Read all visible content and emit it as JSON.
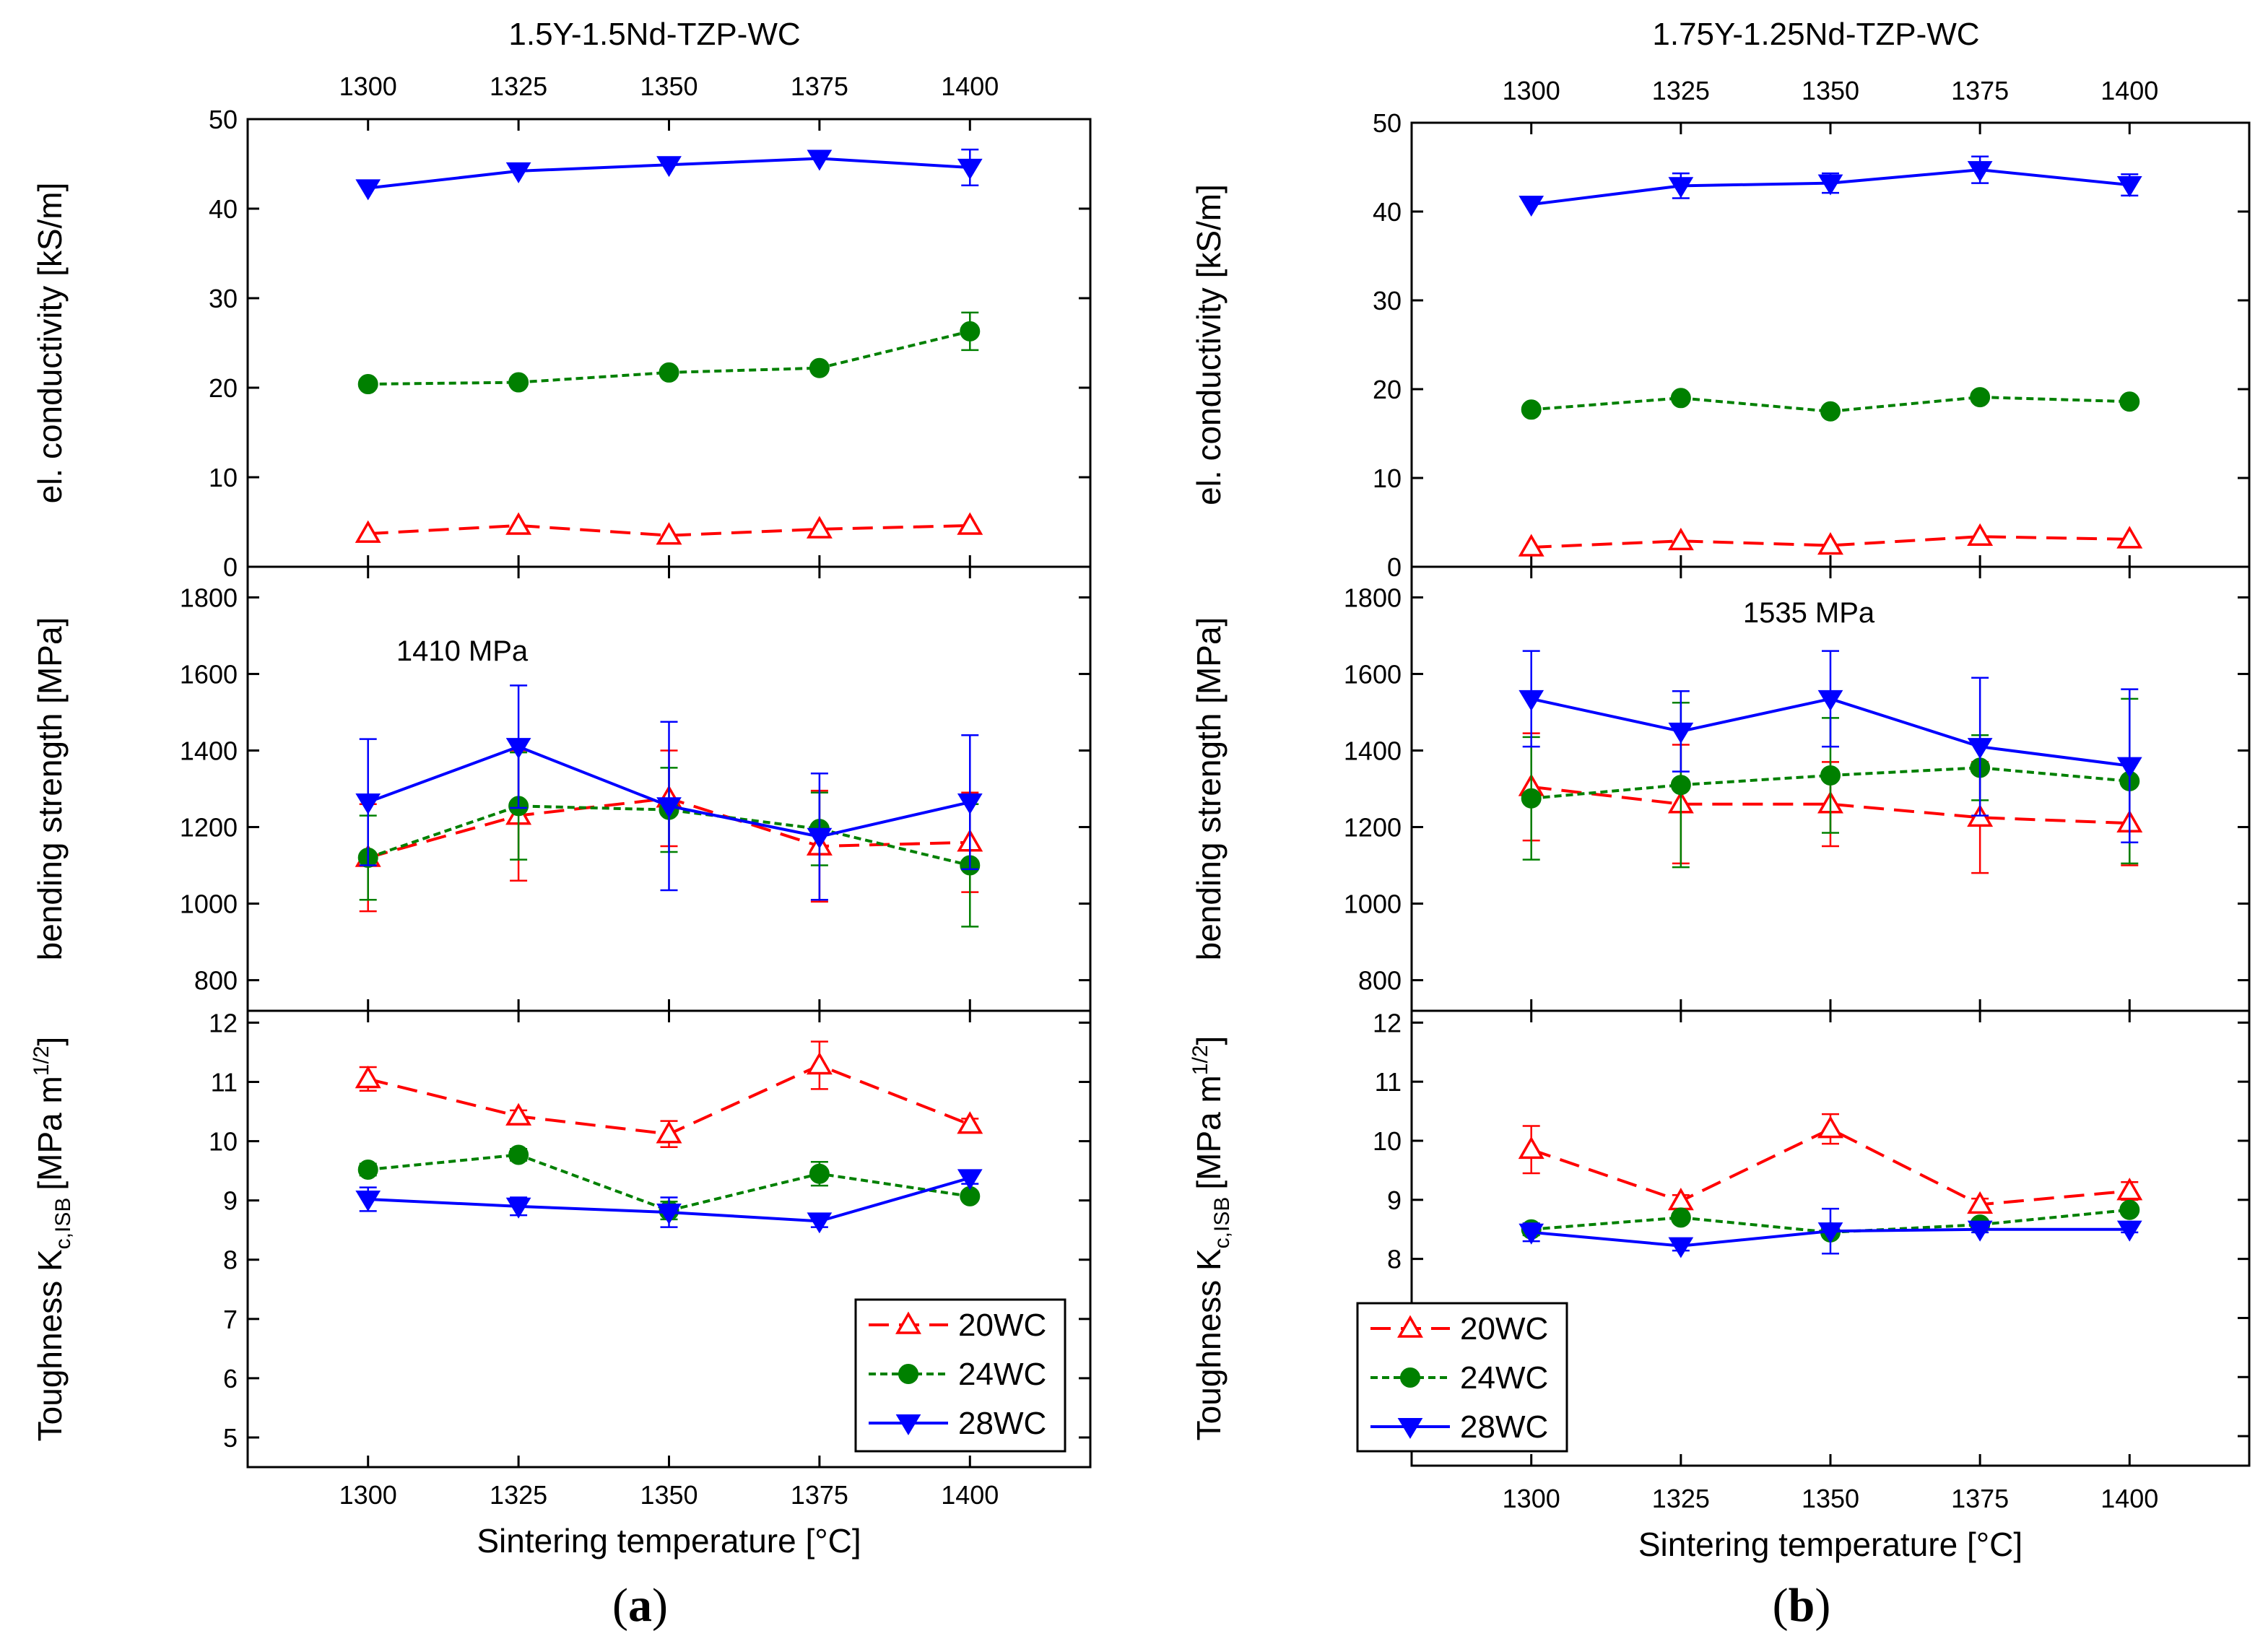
{
  "chart_data": [
    {
      "type": "line",
      "panel_label": "(a)",
      "panel_label_letter": "a",
      "top_title": "1.5Y-1.5Nd-TZP-WC",
      "xlabel": "Sintering temperature [°C]",
      "x": [
        1300,
        1325,
        1350,
        1375,
        1400
      ],
      "xlim": [
        1280,
        1420
      ],
      "x_ticks": [
        1300,
        1325,
        1350,
        1375,
        1400
      ],
      "legend": {
        "placement": "bottom-right",
        "in_subplot": "toughness"
      },
      "subplots": [
        {
          "id": "conductivity",
          "ylabel": "el. conductivity [kS/m]",
          "ylim": [
            0,
            50
          ],
          "y_ticks": [
            0,
            10,
            20,
            30,
            40,
            50
          ],
          "series": [
            {
              "name": "20WC",
              "values": [
                3.7,
                4.6,
                3.5,
                4.2,
                4.6
              ],
              "errors": [
                0,
                0,
                0,
                0,
                0
              ]
            },
            {
              "name": "24WC",
              "values": [
                20.4,
                20.6,
                21.7,
                22.2,
                26.3
              ],
              "errors": [
                0,
                0,
                0,
                0,
                2.1
              ]
            },
            {
              "name": "28WC",
              "values": [
                42.3,
                44.2,
                44.9,
                45.6,
                44.6
              ],
              "errors": [
                0,
                0,
                0,
                0,
                2.0
              ]
            }
          ]
        },
        {
          "id": "strength",
          "ylabel": "bending strength [MPa]",
          "ylim": [
            720,
            1880
          ],
          "y_ticks": [
            800,
            1000,
            1200,
            1400,
            1600,
            1800
          ],
          "annotation": "1410 MPa",
          "series": [
            {
              "name": "20WC",
              "values": [
                1120,
                1230,
                1275,
                1150,
                1160
              ],
              "errors": [
                140,
                170,
                125,
                145,
                130
              ]
            },
            {
              "name": "24WC",
              "values": [
                1120,
                1255,
                1245,
                1195,
                1100
              ],
              "errors": [
                110,
                140,
                110,
                95,
                160
              ]
            },
            {
              "name": "28WC",
              "values": [
                1265,
                1410,
                1255,
                1175,
                1265
              ],
              "errors": [
                165,
                160,
                220,
                165,
                175
              ]
            }
          ]
        },
        {
          "id": "toughness",
          "ylabel_main": "Toughness K",
          "ylabel_sub": "c,ISB",
          "ylabel_units": "[MPa m",
          "ylabel_sup": "1/2",
          "ylabel_close": "]",
          "ylim": [
            4.5,
            12.2
          ],
          "y_ticks": [
            5,
            6,
            7,
            8,
            9,
            10,
            11,
            12
          ],
          "series": [
            {
              "name": "20WC",
              "values": [
                11.05,
                10.42,
                10.12,
                11.28,
                10.28
              ],
              "errors": [
                0.2,
                0.1,
                0.22,
                0.4,
                0.1
              ]
            },
            {
              "name": "24WC",
              "values": [
                9.52,
                9.77,
                8.83,
                9.45,
                9.07
              ],
              "errors": [
                0.1,
                0.1,
                0.15,
                0.2,
                0.05
              ]
            },
            {
              "name": "28WC",
              "values": [
                9.02,
                8.9,
                8.8,
                8.65,
                9.38
              ],
              "errors": [
                0.2,
                0.15,
                0.25,
                0.1,
                0.1
              ]
            }
          ]
        }
      ]
    },
    {
      "type": "line",
      "panel_label": "(b)",
      "panel_label_letter": "b",
      "top_title": "1.75Y-1.25Nd-TZP-WC",
      "xlabel": "Sintering temperature [°C]",
      "x": [
        1300,
        1325,
        1350,
        1375,
        1400
      ],
      "xlim": [
        1280,
        1420
      ],
      "x_ticks": [
        1300,
        1325,
        1350,
        1375,
        1400
      ],
      "legend": {
        "placement": "bottom-left",
        "in_subplot": "toughness"
      },
      "subplots": [
        {
          "id": "conductivity",
          "ylabel": "el. conductivity [kS/m]",
          "ylim": [
            0,
            50
          ],
          "y_ticks": [
            0,
            10,
            20,
            30,
            40,
            50
          ],
          "series": [
            {
              "name": "20WC",
              "values": [
                2.2,
                2.9,
                2.4,
                3.4,
                3.1
              ],
              "errors": [
                0,
                0,
                0,
                0,
                0
              ]
            },
            {
              "name": "24WC",
              "values": [
                17.7,
                19.0,
                17.5,
                19.1,
                18.6
              ],
              "errors": [
                0,
                0,
                0,
                0,
                0
              ]
            },
            {
              "name": "28WC",
              "values": [
                40.8,
                42.9,
                43.2,
                44.7,
                43.0
              ],
              "errors": [
                0,
                1.4,
                1.1,
                1.5,
                1.2
              ]
            }
          ]
        },
        {
          "id": "strength",
          "ylabel": "bending strength [MPa]",
          "ylim": [
            720,
            1880
          ],
          "y_ticks": [
            800,
            1000,
            1200,
            1400,
            1600,
            1800
          ],
          "annotation": "1535 MPa",
          "series": [
            {
              "name": "20WC",
              "values": [
                1305,
                1260,
                1260,
                1225,
                1210
              ],
              "errors": [
                140,
                155,
                110,
                145,
                110
              ]
            },
            {
              "name": "24WC",
              "values": [
                1275,
                1310,
                1335,
                1355,
                1320
              ],
              "errors": [
                160,
                215,
                150,
                85,
                215
              ]
            },
            {
              "name": "28WC",
              "values": [
                1535,
                1450,
                1535,
                1410,
                1360
              ],
              "errors": [
                125,
                105,
                125,
                180,
                200
              ]
            }
          ]
        },
        {
          "id": "toughness",
          "ylabel_main": "Toughness K",
          "ylabel_sub": "c,ISB",
          "ylabel_units": "[MPa m",
          "ylabel_sup": "1/2",
          "ylabel_close": "]",
          "ylim": [
            4.5,
            12.2
          ],
          "y_ticks": [
            5,
            6,
            7,
            8,
            9,
            10,
            11,
            12
          ],
          "series": [
            {
              "name": "20WC",
              "values": [
                9.85,
                8.98,
                10.2,
                8.92,
                9.15
              ],
              "errors": [
                0.4,
                0.1,
                0.25,
                0.1,
                0.15
              ]
            },
            {
              "name": "24WC",
              "values": [
                8.5,
                8.7,
                8.45,
                8.58,
                8.83
              ],
              "errors": [
                0.1,
                0.05,
                0.05,
                0.05,
                0.05
              ]
            },
            {
              "name": "28WC",
              "values": [
                8.45,
                8.22,
                8.47,
                8.5,
                8.5
              ],
              "errors": [
                0.15,
                0.08,
                0.38,
                0.05,
                0.05
              ]
            }
          ]
        }
      ]
    }
  ],
  "series_styles": [
    {
      "name": "20WC",
      "color": "#ff0000",
      "marker": "triangle-up-open",
      "dash": "dashed"
    },
    {
      "name": "24WC",
      "color": "#008000",
      "marker": "circle-filled",
      "dash": "dotted"
    },
    {
      "name": "28WC",
      "color": "#0000ff",
      "marker": "triangle-down-filled",
      "dash": "solid"
    }
  ]
}
